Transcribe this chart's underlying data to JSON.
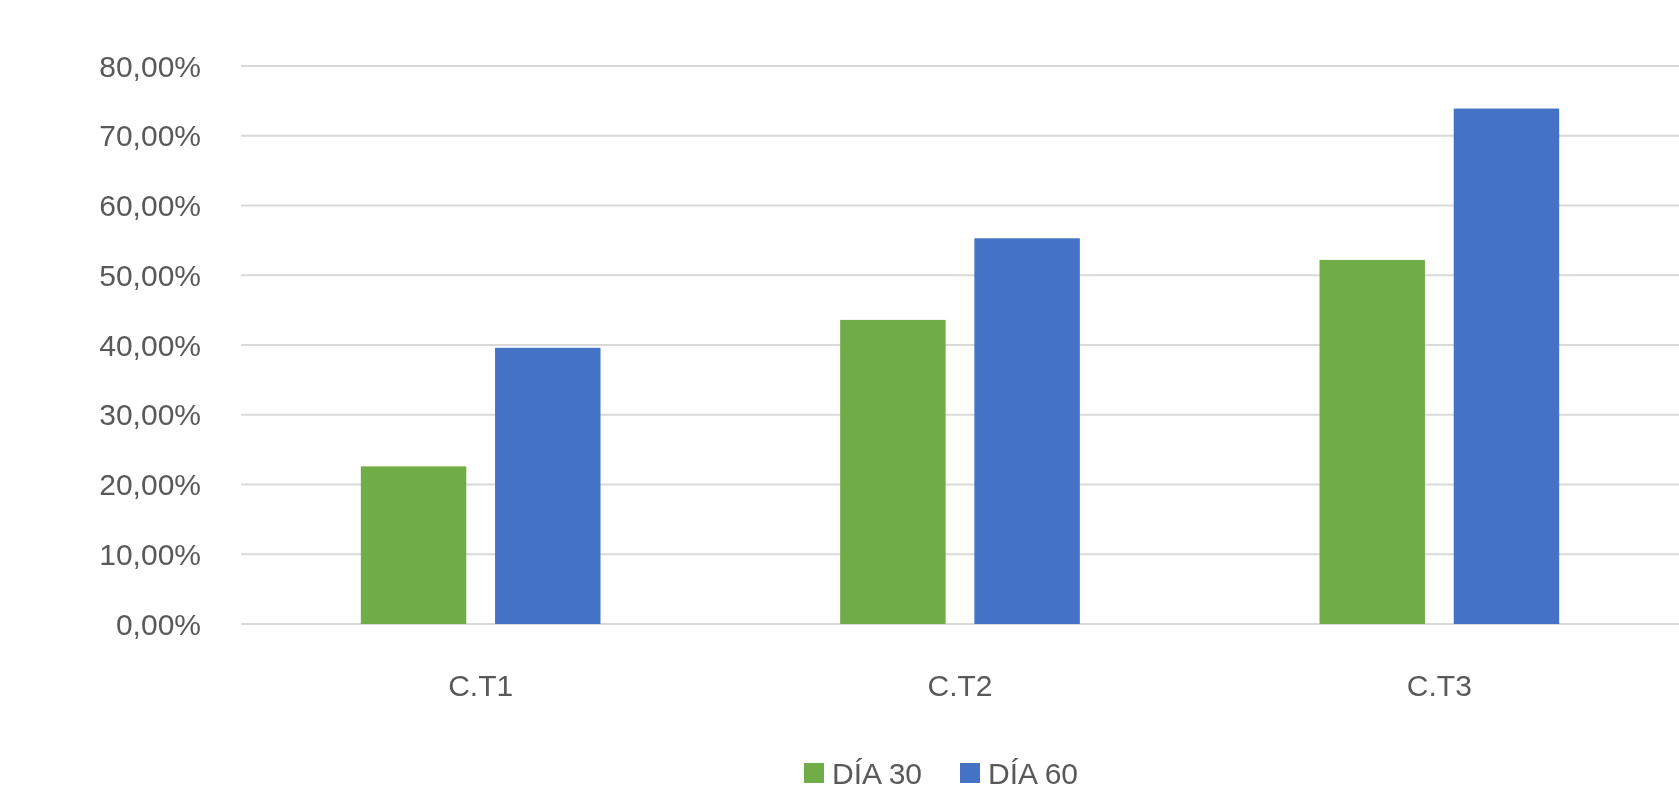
{
  "chart_data": {
    "type": "bar",
    "categories": [
      "C.T1",
      "C.T2",
      "C.T3"
    ],
    "series": [
      {
        "name": "DÍA 30",
        "color": "#70ad47",
        "values": [
          22.6,
          43.6,
          52.2
        ]
      },
      {
        "name": "DÍA 60",
        "color": "#4472c4",
        "values": [
          39.6,
          55.3,
          73.9
        ]
      }
    ],
    "ylim": [
      0,
      80
    ],
    "yticks": [
      {
        "value": 0,
        "label": "0,00%"
      },
      {
        "value": 10,
        "label": "10,00%"
      },
      {
        "value": 20,
        "label": "20,00%"
      },
      {
        "value": 30,
        "label": "30,00%"
      },
      {
        "value": 40,
        "label": "40,00%"
      },
      {
        "value": 50,
        "label": "50,00%"
      },
      {
        "value": 60,
        "label": "60,00%"
      },
      {
        "value": 70,
        "label": "70,00%"
      },
      {
        "value": 80,
        "label": "80,00%"
      }
    ],
    "grid": "y",
    "legend": "bottom"
  }
}
